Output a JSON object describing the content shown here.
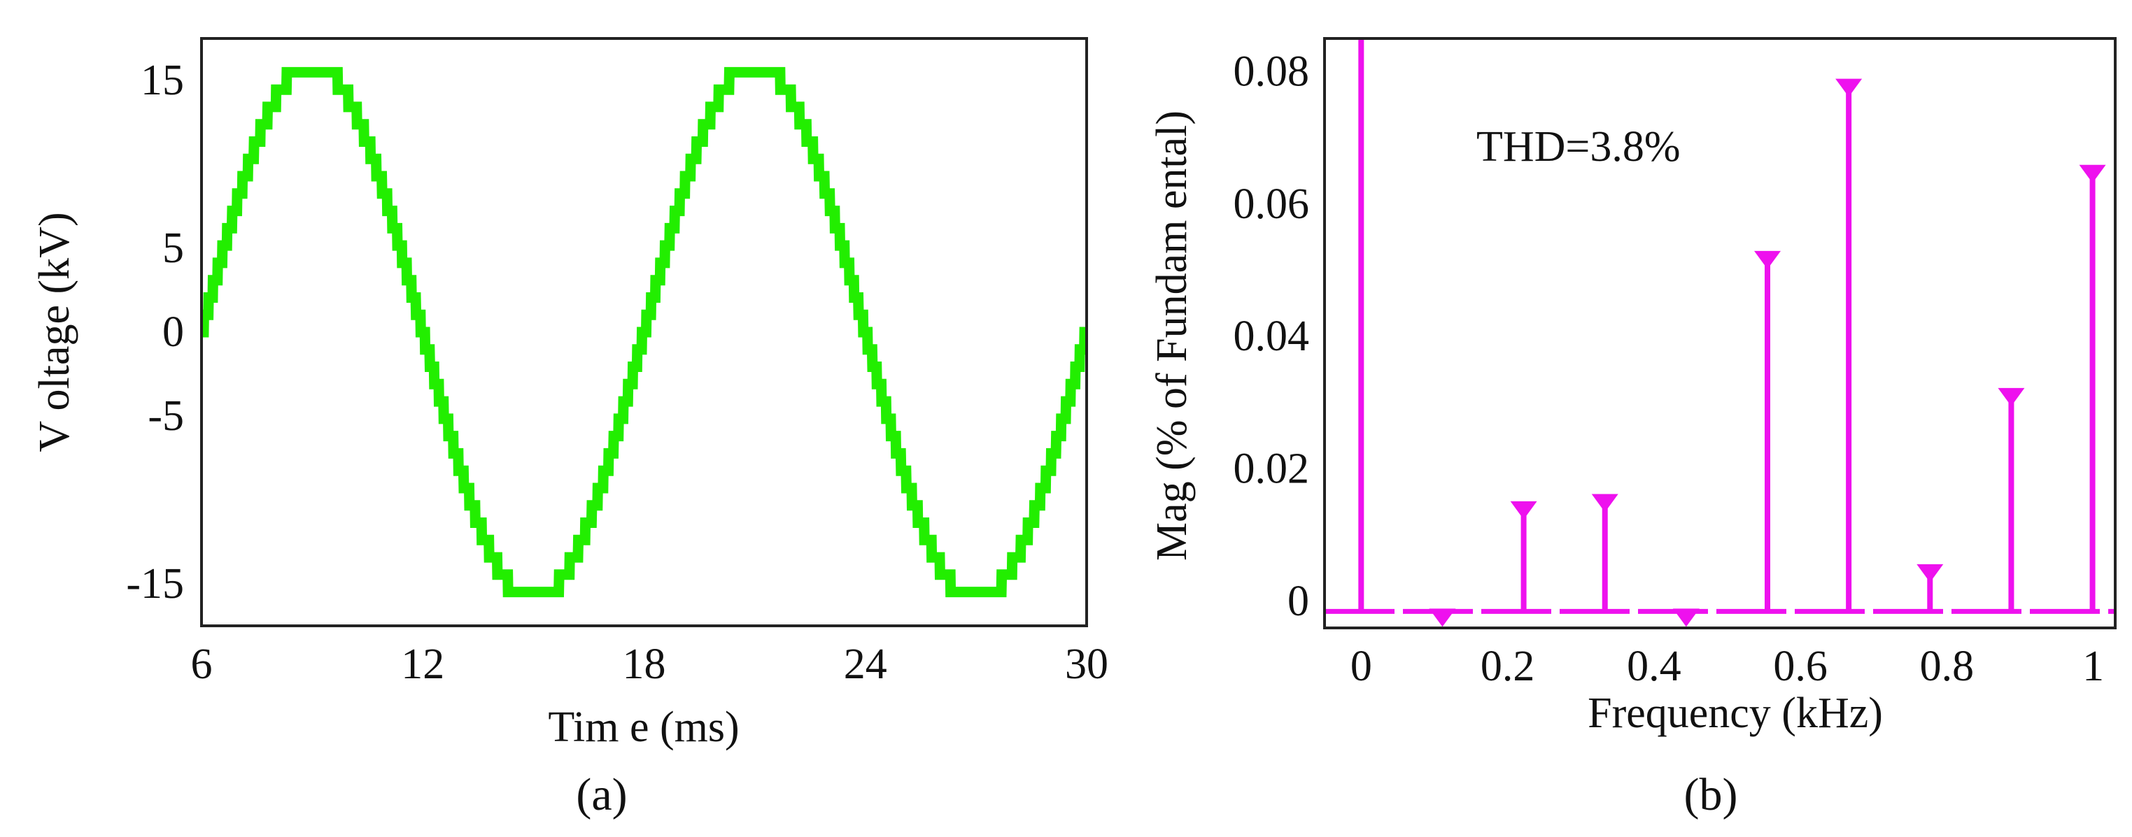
{
  "chart_data": [
    {
      "type": "line",
      "caption": "(a)",
      "xlabel": "Tim e (ms)",
      "ylabel": "V oltage (kV)",
      "xlim": [
        6,
        30
      ],
      "ylim": [
        -17.5,
        17.5
      ],
      "x_ticks": [
        6,
        12,
        18,
        24,
        30
      ],
      "x_tick_labels": [
        "6",
        "12",
        "18",
        "24",
        "30"
      ],
      "y_ticks": [
        15,
        5,
        0,
        -5,
        -15
      ],
      "y_tick_labels": [
        "15",
        "5",
        "0",
        "-5",
        "-15"
      ],
      "series": [
        {
          "waveform": "staircase sine",
          "amplitude_kV": 16,
          "frequency_Hz": 83.33,
          "steps_per_half_cycle": 31,
          "x_range_ms": [
            6,
            30
          ],
          "zero_crossing_ms": 6,
          "color": "#22ee00"
        }
      ],
      "grid": false,
      "legend": "none"
    },
    {
      "type": "bar",
      "caption": "(b)",
      "xlabel": "Frequency (kHz)",
      "ylabel": "Mag (% of Fundam ental)",
      "xlim": [
        -0.05,
        1.03
      ],
      "ylim": [
        -0.004,
        0.085
      ],
      "x_ticks": [
        0,
        0.2,
        0.4,
        0.6,
        0.8,
        1
      ],
      "x_tick_labels": [
        "0",
        "0.2",
        "0.4",
        "0.6",
        "0.8",
        "1"
      ],
      "y_ticks": [
        0,
        0.02,
        0.04,
        0.06,
        0.08
      ],
      "y_tick_labels": [
        "0",
        "0.02",
        "0.04",
        "0.06",
        "0.08"
      ],
      "annotation": "THD=3.8%",
      "x": [
        0.0,
        0.111,
        0.222,
        0.333,
        0.444,
        0.555,
        0.666,
        0.777,
        0.888,
        0.999
      ],
      "values": [
        0.085,
        -0.0015,
        0.0147,
        0.0158,
        -0.0015,
        0.0525,
        0.0785,
        0.0052,
        0.0318,
        0.0655
      ],
      "color": "#ee11ee",
      "grid": false,
      "legend": "none"
    }
  ]
}
